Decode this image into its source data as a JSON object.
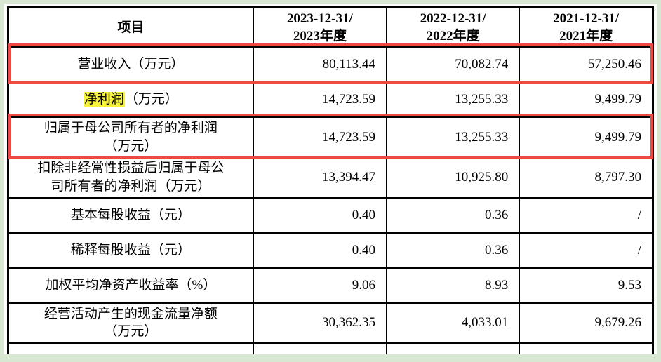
{
  "page": {
    "background_color": "#d8e7d2"
  },
  "annotations": {
    "red_box_color": "#f04843",
    "highlight_color": "#f7f33d",
    "red_boxed_rows": [
      "营业收入（万元）",
      "归属于母公司所有者的净利润（万元）"
    ],
    "yellow_highlighted_term": "净利润"
  },
  "table": {
    "columns": [
      "项目",
      "2023-12-31/\n2023年度",
      "2022-12-31/\n2022年度",
      "2021-12-31/\n2021年度"
    ],
    "rows": [
      {
        "label": "营业收入（万元）",
        "values": [
          "80,113.44",
          "70,082.74",
          "57,250.46"
        ],
        "red_box": true
      },
      {
        "label": "净利润（万元）",
        "values": [
          "14,723.59",
          "13,255.33",
          "9,499.79"
        ],
        "mark": "净利润"
      },
      {
        "label": "归属于母公司所有者的净利润\n（万元）",
        "values": [
          "14,723.59",
          "13,255.33",
          "9,499.79"
        ],
        "red_box": true
      },
      {
        "label": "扣除非经常性损益后归属于母公\n司所有者的净利润（万元）",
        "values": [
          "13,394.47",
          "10,925.80",
          "8,797.30"
        ]
      },
      {
        "label": "基本每股收益（元）",
        "values": [
          "0.40",
          "0.36",
          "/"
        ]
      },
      {
        "label": "稀释每股收益（元）",
        "values": [
          "0.40",
          "0.36",
          "/"
        ]
      },
      {
        "label": "加权平均净资产收益率（%）",
        "values": [
          "9.06",
          "8.93",
          "9.53"
        ]
      },
      {
        "label": "经营活动产生的现金流量净额\n（万元）",
        "values": [
          "30,362.35",
          "4,033.01",
          "9,679.26"
        ]
      },
      {
        "label": "",
        "values": [
          "",
          "",
          ""
        ],
        "partial": true
      }
    ]
  }
}
